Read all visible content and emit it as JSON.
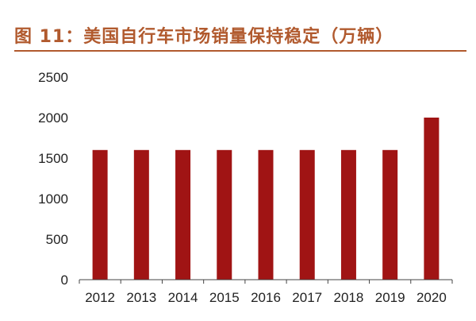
{
  "title": "图 11：美国自行车市场销量保持稳定（万辆）",
  "colors": {
    "title": "#b15a2e",
    "bar": "#a01414",
    "axis": "#444444",
    "text": "#222222"
  },
  "chart_data": {
    "type": "bar",
    "title": "图 11：美国自行车市场销量保持稳定（万辆）",
    "xlabel": "",
    "ylabel": "",
    "categories": [
      "2012",
      "2013",
      "2014",
      "2015",
      "2016",
      "2017",
      "2018",
      "2019",
      "2020"
    ],
    "values": [
      1600,
      1600,
      1600,
      1600,
      1600,
      1600,
      1600,
      1600,
      2000
    ],
    "ylim": [
      0,
      2500
    ],
    "yticks": [
      "0",
      "500",
      "1000",
      "1500",
      "2000",
      "2500"
    ],
    "grid": false,
    "legend": "none"
  }
}
